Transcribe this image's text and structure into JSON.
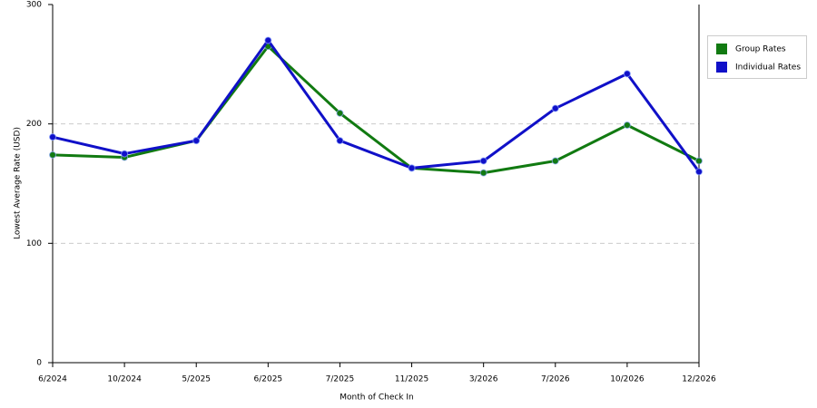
{
  "chart_data": {
    "type": "line",
    "x_label": "Month of Check In",
    "y_label": "Lowest Average Rate (USD)",
    "categories": [
      "6/2024",
      "10/2024",
      "5/2025",
      "6/2025",
      "7/2025",
      "11/2025",
      "3/2026",
      "7/2026",
      "10/2026",
      "12/2026"
    ],
    "series": [
      {
        "name": "Group Rates",
        "color": "#117a11",
        "values": [
          174,
          172,
          186,
          265,
          209,
          163,
          159,
          169,
          199,
          169
        ]
      },
      {
        "name": "Individual Rates",
        "color": "#1010c8",
        "values": [
          189,
          175,
          186,
          270,
          186,
          163,
          169,
          213,
          242,
          160
        ]
      }
    ],
    "ylim": [
      0,
      300
    ],
    "yticks": [
      0,
      100,
      200,
      300
    ],
    "grid": true
  }
}
